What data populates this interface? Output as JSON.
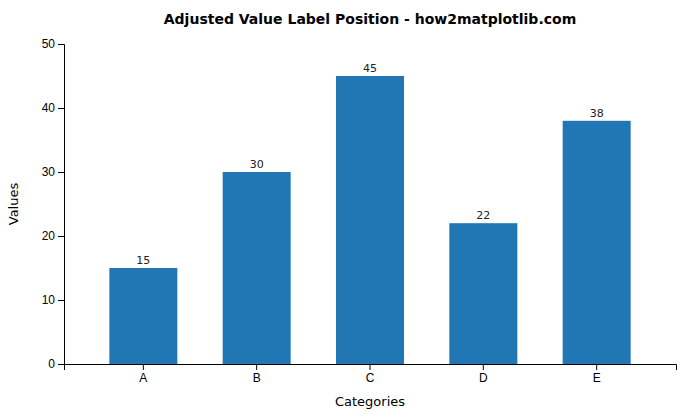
{
  "chart_data": {
    "type": "bar",
    "title": "Adjusted Value Label Position - how2matplotlib.com",
    "xlabel": "Categories",
    "ylabel": "Values",
    "categories": [
      "A",
      "B",
      "C",
      "D",
      "E"
    ],
    "values": [
      15,
      30,
      45,
      22,
      38
    ],
    "color": "#2077b4",
    "ylim": [
      0,
      50
    ],
    "yticks": [
      0,
      10,
      20,
      30,
      40,
      50
    ],
    "grid": false,
    "data_labels": true
  }
}
